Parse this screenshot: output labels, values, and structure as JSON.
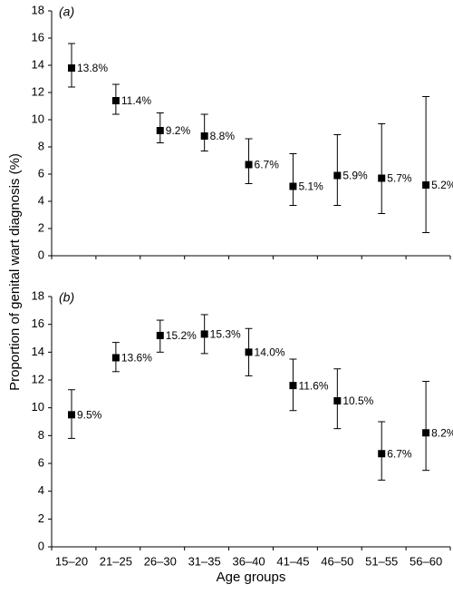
{
  "categories": [
    "15–20",
    "21–25",
    "26–30",
    "31–35",
    "36–40",
    "41–45",
    "46–50",
    "51–55",
    "56–60"
  ],
  "xlabel": "Age groups",
  "ylabel": "Proportion of genital wart diagnosis (%)",
  "chart_data": [
    {
      "type": "errorbar",
      "panel_label": "(a)",
      "color": "#000000",
      "values": [
        13.8,
        11.4,
        9.2,
        8.8,
        6.7,
        5.1,
        5.9,
        5.7,
        5.2
      ],
      "value_labels": [
        "13.8%",
        "11.4%",
        "9.2%",
        "8.8%",
        "6.7%",
        "5.1%",
        "5.9%",
        "5.7%",
        "5.2%"
      ],
      "lower": [
        12.4,
        10.4,
        8.3,
        7.7,
        5.3,
        3.7,
        3.7,
        3.1,
        1.7
      ],
      "upper": [
        15.6,
        12.6,
        10.5,
        10.4,
        8.6,
        7.5,
        8.9,
        9.7,
        11.7
      ],
      "ylim": [
        0,
        18
      ],
      "yticks": [
        0,
        2,
        4,
        6,
        8,
        10,
        12,
        14,
        16,
        18
      ]
    },
    {
      "type": "errorbar",
      "panel_label": "(b)",
      "color": "#000000",
      "values": [
        9.5,
        13.6,
        15.2,
        15.3,
        14.0,
        11.6,
        10.5,
        6.7,
        8.2
      ],
      "value_labels": [
        "9.5%",
        "13.6%",
        "15.2%",
        "15.3%",
        "14.0%",
        "11.6%",
        "10.5%",
        "6.7%",
        "8.2%"
      ],
      "lower": [
        7.8,
        12.6,
        14.0,
        13.9,
        12.3,
        9.8,
        8.5,
        4.8,
        5.5
      ],
      "upper": [
        11.3,
        14.7,
        16.3,
        16.7,
        15.7,
        13.5,
        12.8,
        9.0,
        11.9
      ],
      "ylim": [
        0,
        18
      ],
      "yticks": [
        0,
        2,
        4,
        6,
        8,
        10,
        12,
        14,
        16,
        18
      ]
    }
  ]
}
